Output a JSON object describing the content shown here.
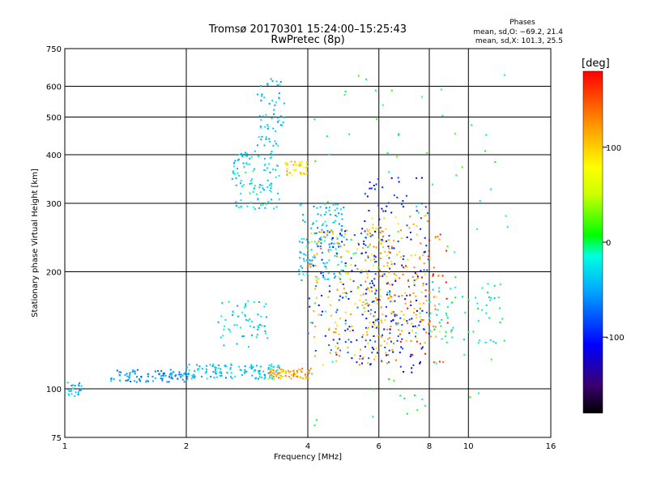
{
  "chart_data": {
    "type": "scatter",
    "title": "Tromsø 20170301 15:24:00–15:25:43",
    "subtitle": "RwPretec (8p)",
    "xlabel": "Frequency [MHz]",
    "ylabel": "Stationary phase Virtual Height [km]",
    "x_scale": "log",
    "y_scale": "log",
    "xlim": [
      1,
      16
    ],
    "ylim": [
      75,
      750
    ],
    "x_ticks": [
      1,
      2,
      4,
      6,
      8,
      10,
      16
    ],
    "y_ticks": [
      75,
      100,
      200,
      300,
      400,
      500,
      600,
      750
    ],
    "grid": true,
    "phases": {
      "title": "Phases",
      "line1": "mean, sd,O: −69.2, 21.4",
      "line2": "mean, sd,X: 101.3, 25.5"
    },
    "colorbar": {
      "label": "[deg]",
      "ticks": [
        100,
        0,
        -100
      ],
      "range": [
        -180,
        180
      ]
    },
    "clusters": [
      {
        "x": [
          1.0,
          1.1
        ],
        "y": [
          95,
          105
        ],
        "phase": -40,
        "n": 25
      },
      {
        "x": [
          1.3,
          2.0
        ],
        "y": [
          104,
          112
        ],
        "phase": -60,
        "n": 90
      },
      {
        "x": [
          2.0,
          3.4
        ],
        "y": [
          106,
          116
        ],
        "phase": -40,
        "n": 120
      },
      {
        "x": [
          3.2,
          4.1
        ],
        "y": [
          106,
          113
        ],
        "phase": 120,
        "n": 70
      },
      {
        "x": [
          2.4,
          3.2
        ],
        "y": [
          128,
          170
        ],
        "phase": -30,
        "n": 60
      },
      {
        "x": [
          2.6,
          3.4
        ],
        "y": [
          290,
          410
        ],
        "phase": -30,
        "n": 110
      },
      {
        "x": [
          3.0,
          3.5
        ],
        "y": [
          420,
          630
        ],
        "phase": -40,
        "n": 60
      },
      {
        "x": [
          3.5,
          4.0
        ],
        "y": [
          355,
          385
        ],
        "phase": 100,
        "n": 40
      },
      {
        "x": [
          3.8,
          5.0
        ],
        "y": [
          190,
          300
        ],
        "phase": -40,
        "n": 140
      },
      {
        "x": [
          4.0,
          6.5
        ],
        "y": [
          115,
          260
        ],
        "phase": 110,
        "n": 170
      },
      {
        "x": [
          4.0,
          6.5
        ],
        "y": [
          115,
          260
        ],
        "phase": -90,
        "n": 120
      },
      {
        "x": [
          5.5,
          8.0
        ],
        "y": [
          110,
          350
        ],
        "phase": -100,
        "n": 160
      },
      {
        "x": [
          5.5,
          8.5
        ],
        "y": [
          130,
          280
        ],
        "phase": 110,
        "n": 140
      },
      {
        "x": [
          6.0,
          9.0
        ],
        "y": [
          115,
          260
        ],
        "phase": 160,
        "n": 50
      },
      {
        "x": [
          8.0,
          12.0
        ],
        "y": [
          130,
          190
        ],
        "phase": -20,
        "n": 60
      },
      {
        "x": [
          4.0,
          13.0
        ],
        "y": [
          80,
          660
        ],
        "phase": 0,
        "n": 90
      }
    ]
  }
}
